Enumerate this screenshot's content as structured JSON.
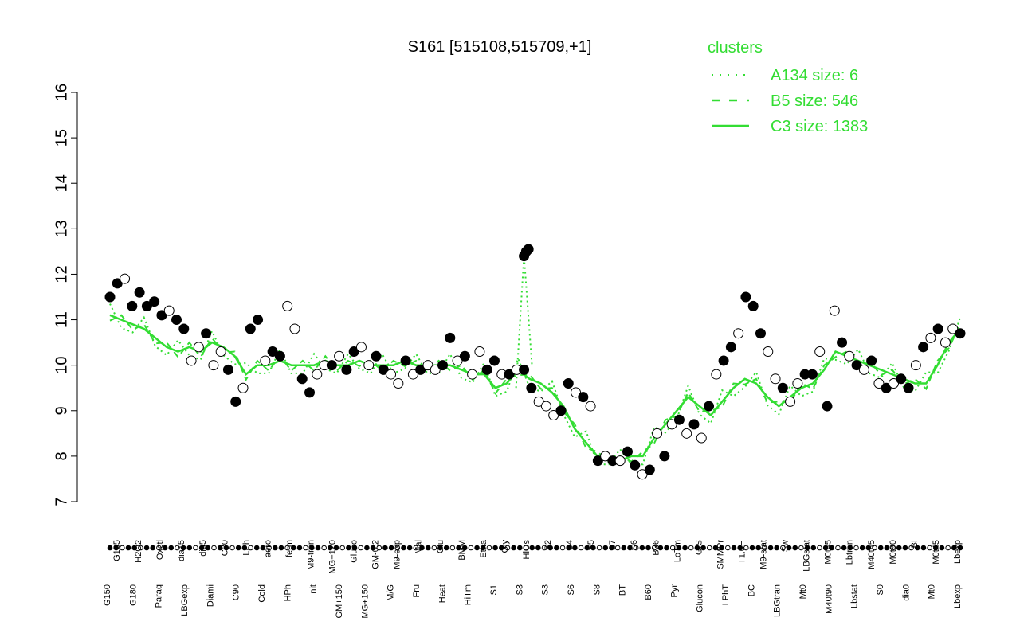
{
  "chart_data": {
    "type": "line",
    "title": "S161 [515108,515709,+1]",
    "xlabel": "",
    "ylabel": "",
    "ylim": [
      7,
      16
    ],
    "yticks": [
      7,
      8,
      9,
      10,
      11,
      12,
      13,
      14,
      15,
      16
    ],
    "grid": false,
    "legend": {
      "title": "clusters",
      "placement": "top-right",
      "color": "#33dd33",
      "entries": [
        {
          "label": "A134 size: 6",
          "style": "dotted"
        },
        {
          "label": "B5 size: 546",
          "style": "dashed"
        },
        {
          "label": "C3 size: 1383",
          "style": "solid"
        }
      ]
    },
    "line_color": "#33dd33",
    "x_tick_labels_row1": [
      "G135",
      "H2O2",
      "Oxctl",
      "dia15",
      "dia5",
      "C30",
      "LPh",
      "aero",
      "ferm",
      "M9-tran",
      "MG+120",
      "Gluco",
      "GM-0.2",
      "M9-exp",
      "Mal",
      "Glu",
      "BMM",
      "Etha",
      "Gly",
      "HiOs",
      "S2",
      "S4",
      "S5",
      "S7",
      "S6",
      "B36",
      "LoTm",
      "G/S",
      "SMMPr",
      "T1.0H",
      "M9-stat",
      "Sw",
      "LBGstat",
      "M0t45",
      "Lbtran",
      "M40t45",
      "M0t90",
      "BI",
      "M0t45",
      "Lbexp"
    ],
    "x_tick_labels_row2": [
      "G150",
      "G180",
      "Paraq",
      "LBGexp",
      "Diami",
      "C90",
      "Cold",
      "HPh",
      "nit",
      "GM+150",
      "MG+150",
      "M/G",
      "Fru",
      "Heat",
      "HiTm",
      "S1",
      "S3",
      "S3",
      "S6",
      "S8",
      "BT",
      "B60",
      "Pyr",
      "Glucon",
      "LPhT",
      "BC",
      "LBGtran",
      "Mt0",
      "M40t90",
      "Lbstat",
      "S0",
      "dia0",
      "Mt0",
      "Lbexp"
    ],
    "line_points": [
      [
        0,
        11.1
      ],
      [
        2,
        11.0
      ],
      [
        4,
        10.9
      ],
      [
        6,
        10.8
      ],
      [
        8,
        10.6
      ],
      [
        10,
        10.4
      ],
      [
        12,
        10.3
      ],
      [
        14,
        10.4
      ],
      [
        16,
        10.3
      ],
      [
        18,
        10.5
      ],
      [
        20,
        10.4
      ],
      [
        22,
        10.2
      ],
      [
        24,
        9.8
      ],
      [
        26,
        10.0
      ],
      [
        28,
        10.0
      ],
      [
        30,
        10.1
      ],
      [
        32,
        10.0
      ],
      [
        34,
        10.0
      ],
      [
        36,
        10.0
      ],
      [
        38,
        10.1
      ],
      [
        40,
        10.0
      ],
      [
        42,
        10.0
      ],
      [
        44,
        10.1
      ],
      [
        46,
        10.0
      ],
      [
        48,
        10.0
      ],
      [
        50,
        10.0
      ],
      [
        52,
        10.1
      ],
      [
        54,
        10.0
      ],
      [
        56,
        10.0
      ],
      [
        58,
        10.0
      ],
      [
        60,
        10.0
      ],
      [
        62,
        9.9
      ],
      [
        64,
        9.8
      ],
      [
        66,
        9.8
      ],
      [
        68,
        9.5
      ],
      [
        70,
        9.6
      ],
      [
        72,
        9.9
      ],
      [
        74,
        9.7
      ],
      [
        76,
        9.6
      ],
      [
        78,
        9.4
      ],
      [
        80,
        9.1
      ],
      [
        82,
        8.6
      ],
      [
        84,
        8.3
      ],
      [
        86,
        8.0
      ],
      [
        88,
        8.0
      ],
      [
        90,
        7.9
      ],
      [
        92,
        8.0
      ],
      [
        94,
        8.0
      ],
      [
        96,
        8.4
      ],
      [
        98,
        8.7
      ],
      [
        100,
        9.0
      ],
      [
        102,
        9.3
      ],
      [
        104,
        9.1
      ],
      [
        106,
        8.9
      ],
      [
        108,
        9.2
      ],
      [
        110,
        9.5
      ],
      [
        112,
        9.7
      ],
      [
        114,
        9.6
      ],
      [
        116,
        9.3
      ],
      [
        118,
        9.1
      ],
      [
        120,
        9.3
      ],
      [
        122,
        9.5
      ],
      [
        124,
        9.6
      ],
      [
        126,
        9.9
      ],
      [
        128,
        10.3
      ],
      [
        130,
        10.2
      ],
      [
        132,
        10.1
      ],
      [
        134,
        10.0
      ],
      [
        136,
        9.9
      ],
      [
        138,
        9.8
      ],
      [
        140,
        9.7
      ],
      [
        142,
        9.6
      ],
      [
        144,
        9.6
      ],
      [
        146,
        10.0
      ],
      [
        148,
        10.5
      ],
      [
        150,
        10.8
      ]
    ],
    "point_series": [
      {
        "x": 0,
        "y": 11.5,
        "filled": true
      },
      {
        "x": 1,
        "y": 11.8,
        "filled": true
      },
      {
        "x": 2,
        "y": 11.9,
        "filled": false
      },
      {
        "x": 3,
        "y": 11.3,
        "filled": true
      },
      {
        "x": 4,
        "y": 11.6,
        "filled": true
      },
      {
        "x": 5,
        "y": 11.3,
        "filled": true
      },
      {
        "x": 6,
        "y": 11.4,
        "filled": true
      },
      {
        "x": 7,
        "y": 11.1,
        "filled": true
      },
      {
        "x": 8,
        "y": 11.2,
        "filled": false
      },
      {
        "x": 9,
        "y": 11.0,
        "filled": true
      },
      {
        "x": 10,
        "y": 10.8,
        "filled": true
      },
      {
        "x": 11,
        "y": 10.1,
        "filled": false
      },
      {
        "x": 12,
        "y": 10.4,
        "filled": false
      },
      {
        "x": 13,
        "y": 10.7,
        "filled": true
      },
      {
        "x": 14,
        "y": 10.0,
        "filled": false
      },
      {
        "x": 15,
        "y": 10.3,
        "filled": false
      },
      {
        "x": 16,
        "y": 9.9,
        "filled": true
      },
      {
        "x": 17,
        "y": 9.2,
        "filled": true
      },
      {
        "x": 18,
        "y": 9.5,
        "filled": false
      },
      {
        "x": 19,
        "y": 10.8,
        "filled": true
      },
      {
        "x": 20,
        "y": 11.0,
        "filled": true
      },
      {
        "x": 21,
        "y": 10.1,
        "filled": false
      },
      {
        "x": 22,
        "y": 10.3,
        "filled": true
      },
      {
        "x": 23,
        "y": 10.2,
        "filled": true
      },
      {
        "x": 24,
        "y": 11.3,
        "filled": false
      },
      {
        "x": 25,
        "y": 10.8,
        "filled": false
      },
      {
        "x": 26,
        "y": 9.7,
        "filled": true
      },
      {
        "x": 27,
        "y": 9.4,
        "filled": true
      },
      {
        "x": 28,
        "y": 9.8,
        "filled": false
      },
      {
        "x": 29,
        "y": 10.0,
        "filled": false
      },
      {
        "x": 30,
        "y": 10.0,
        "filled": true
      },
      {
        "x": 31,
        "y": 10.2,
        "filled": false
      },
      {
        "x": 32,
        "y": 9.9,
        "filled": true
      },
      {
        "x": 33,
        "y": 10.3,
        "filled": true
      },
      {
        "x": 34,
        "y": 10.4,
        "filled": false
      },
      {
        "x": 35,
        "y": 10.0,
        "filled": false
      },
      {
        "x": 36,
        "y": 10.2,
        "filled": true
      },
      {
        "x": 37,
        "y": 9.9,
        "filled": true
      },
      {
        "x": 38,
        "y": 9.8,
        "filled": false
      },
      {
        "x": 39,
        "y": 9.6,
        "filled": false
      },
      {
        "x": 40,
        "y": 10.1,
        "filled": true
      },
      {
        "x": 41,
        "y": 9.8,
        "filled": false
      },
      {
        "x": 42,
        "y": 9.9,
        "filled": true
      },
      {
        "x": 43,
        "y": 10.0,
        "filled": false
      },
      {
        "x": 44,
        "y": 9.9,
        "filled": false
      },
      {
        "x": 45,
        "y": 10.0,
        "filled": true
      },
      {
        "x": 46,
        "y": 10.6,
        "filled": true
      },
      {
        "x": 47,
        "y": 10.1,
        "filled": false
      },
      {
        "x": 48,
        "y": 10.2,
        "filled": true
      },
      {
        "x": 49,
        "y": 9.8,
        "filled": false
      },
      {
        "x": 50,
        "y": 10.3,
        "filled": false
      },
      {
        "x": 51,
        "y": 9.9,
        "filled": true
      },
      {
        "x": 52,
        "y": 10.1,
        "filled": true
      },
      {
        "x": 53,
        "y": 9.8,
        "filled": false
      },
      {
        "x": 54,
        "y": 9.8,
        "filled": true
      },
      {
        "x": 55,
        "y": 9.9,
        "filled": false
      },
      {
        "x": 56,
        "y": 9.9,
        "filled": true
      },
      {
        "x": 57,
        "y": 9.5,
        "filled": true
      },
      {
        "x": 58,
        "y": 9.2,
        "filled": false
      },
      {
        "x": 59,
        "y": 9.1,
        "filled": false
      },
      {
        "x": 60,
        "y": 8.9,
        "filled": false
      },
      {
        "x": 61,
        "y": 9.0,
        "filled": true
      },
      {
        "x": 62,
        "y": 9.6,
        "filled": true
      },
      {
        "x": 63,
        "y": 9.4,
        "filled": false
      },
      {
        "x": 64,
        "y": 9.3,
        "filled": true
      },
      {
        "x": 65,
        "y": 9.1,
        "filled": false
      },
      {
        "x": 66,
        "y": 7.9,
        "filled": true
      },
      {
        "x": 67,
        "y": 8.0,
        "filled": false
      },
      {
        "x": 68,
        "y": 7.9,
        "filled": true
      },
      {
        "x": 69,
        "y": 7.9,
        "filled": false
      },
      {
        "x": 70,
        "y": 8.1,
        "filled": true
      },
      {
        "x": 71,
        "y": 7.8,
        "filled": true
      },
      {
        "x": 72,
        "y": 7.6,
        "filled": false
      },
      {
        "x": 73,
        "y": 7.7,
        "filled": true
      },
      {
        "x": 74,
        "y": 8.5,
        "filled": false
      },
      {
        "x": 75,
        "y": 8.0,
        "filled": true
      },
      {
        "x": 76,
        "y": 8.7,
        "filled": false
      },
      {
        "x": 77,
        "y": 8.8,
        "filled": true
      },
      {
        "x": 78,
        "y": 8.5,
        "filled": false
      },
      {
        "x": 79,
        "y": 8.7,
        "filled": true
      },
      {
        "x": 80,
        "y": 8.4,
        "filled": false
      },
      {
        "x": 81,
        "y": 9.1,
        "filled": true
      },
      {
        "x": 82,
        "y": 9.8,
        "filled": false
      },
      {
        "x": 83,
        "y": 10.1,
        "filled": true
      },
      {
        "x": 84,
        "y": 10.4,
        "filled": true
      },
      {
        "x": 85,
        "y": 10.7,
        "filled": false
      },
      {
        "x": 86,
        "y": 11.5,
        "filled": true
      },
      {
        "x": 87,
        "y": 11.3,
        "filled": true
      },
      {
        "x": 88,
        "y": 10.7,
        "filled": true
      },
      {
        "x": 89,
        "y": 10.3,
        "filled": false
      },
      {
        "x": 90,
        "y": 9.7,
        "filled": false
      },
      {
        "x": 91,
        "y": 9.5,
        "filled": true
      },
      {
        "x": 92,
        "y": 9.2,
        "filled": false
      },
      {
        "x": 93,
        "y": 9.6,
        "filled": false
      },
      {
        "x": 94,
        "y": 9.8,
        "filled": true
      },
      {
        "x": 95,
        "y": 9.8,
        "filled": true
      },
      {
        "x": 96,
        "y": 10.3,
        "filled": false
      },
      {
        "x": 97,
        "y": 9.1,
        "filled": true
      },
      {
        "x": 98,
        "y": 11.2,
        "filled": false
      },
      {
        "x": 99,
        "y": 10.5,
        "filled": true
      },
      {
        "x": 100,
        "y": 10.2,
        "filled": false
      },
      {
        "x": 101,
        "y": 10.0,
        "filled": true
      },
      {
        "x": 102,
        "y": 9.9,
        "filled": false
      },
      {
        "x": 103,
        "y": 10.1,
        "filled": true
      },
      {
        "x": 104,
        "y": 9.6,
        "filled": false
      },
      {
        "x": 105,
        "y": 9.5,
        "filled": true
      },
      {
        "x": 106,
        "y": 9.6,
        "filled": false
      },
      {
        "x": 107,
        "y": 9.7,
        "filled": true
      },
      {
        "x": 108,
        "y": 9.5,
        "filled": true
      },
      {
        "x": 109,
        "y": 10.0,
        "filled": false
      },
      {
        "x": 110,
        "y": 10.4,
        "filled": true
      },
      {
        "x": 111,
        "y": 10.6,
        "filled": false
      },
      {
        "x": 112,
        "y": 10.8,
        "filled": true
      },
      {
        "x": 113,
        "y": 10.5,
        "filled": false
      },
      {
        "x": 114,
        "y": 10.8,
        "filled": false
      },
      {
        "x": 115,
        "y": 10.7,
        "filled": true
      }
    ],
    "spike_points": [
      {
        "x": 56,
        "y": 12.4,
        "filled": true
      },
      {
        "x": 56.3,
        "y": 12.5,
        "filled": true
      },
      {
        "x": 56.6,
        "y": 12.55,
        "filled": true
      }
    ]
  }
}
